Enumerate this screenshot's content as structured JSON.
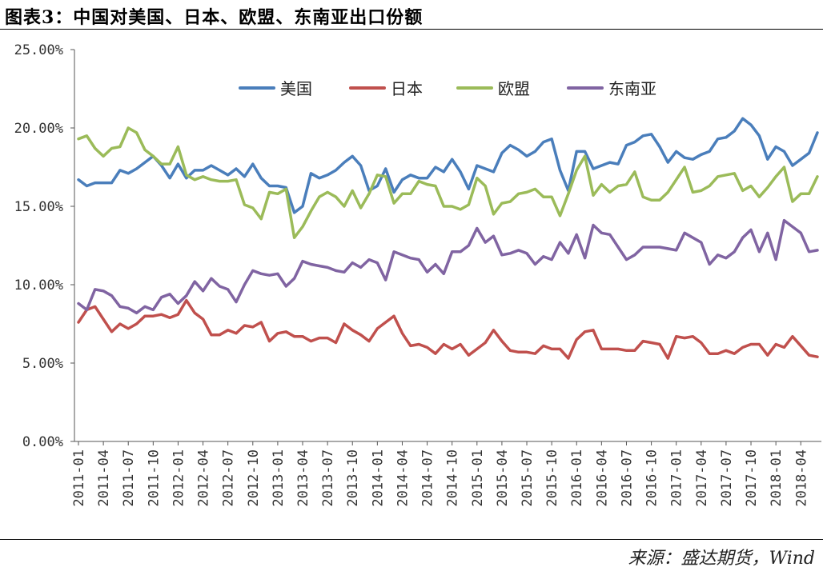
{
  "figure": {
    "title": "图表3：中国对美国、日本、欧盟、东南亚出口份额",
    "source": "来源：盛达期货，Wind"
  },
  "chart_data": {
    "type": "line",
    "ylim": [
      0,
      25
    ],
    "yticks": [
      "0.00%",
      "5.00%",
      "10.00%",
      "15.00%",
      "20.00%",
      "25.00%"
    ],
    "ytick_values": [
      0,
      5,
      10,
      15,
      20,
      25
    ],
    "xtick_labels": [
      "2011-01",
      "2011-04",
      "2011-07",
      "2011-10",
      "2012-01",
      "2012-04",
      "2012-07",
      "2012-10",
      "2013-01",
      "2013-04",
      "2013-07",
      "2013-10",
      "2014-01",
      "2014-04",
      "2014-07",
      "2014-10",
      "2015-01",
      "2015-04",
      "2015-07",
      "2015-10",
      "2016-01",
      "2016-04",
      "2016-07",
      "2016-10",
      "2017-01",
      "2017-04",
      "2017-07",
      "2017-10",
      "2018-01",
      "2018-04"
    ],
    "legend_position": "top",
    "grid": false,
    "series": [
      {
        "name": "美国",
        "color": "#4a7ebb",
        "values": [
          16.7,
          16.3,
          16.5,
          16.5,
          16.5,
          17.3,
          17.1,
          17.4,
          17.8,
          18.2,
          17.6,
          16.8,
          17.7,
          16.8,
          17.3,
          17.3,
          17.6,
          17.3,
          17.0,
          17.4,
          16.9,
          17.7,
          16.8,
          16.3,
          16.3,
          16.2,
          14.6,
          15.0,
          17.1,
          16.8,
          17.0,
          17.3,
          17.8,
          18.2,
          17.6,
          16.0,
          16.3,
          17.4,
          15.9,
          16.7,
          17.0,
          16.8,
          16.8,
          17.5,
          17.2,
          18.0,
          17.2,
          16.1,
          17.6,
          17.4,
          17.2,
          18.4,
          18.9,
          18.6,
          18.2,
          18.5,
          19.1,
          19.3,
          17.3,
          16.0,
          18.5,
          18.5,
          17.4,
          17.6,
          17.8,
          17.7,
          18.9,
          19.1,
          19.5,
          19.6,
          18.8,
          17.8,
          18.5,
          18.1,
          18.0,
          18.3,
          18.5,
          19.3,
          19.4,
          19.8,
          20.6,
          20.2,
          19.5,
          18.0,
          18.8,
          18.5,
          17.6,
          18.0,
          18.4,
          19.7
        ]
      },
      {
        "name": "日本",
        "color": "#c0504d",
        "values": [
          7.6,
          8.4,
          8.6,
          7.8,
          7.0,
          7.5,
          7.2,
          7.5,
          8.0,
          8.0,
          8.1,
          7.9,
          8.1,
          9.0,
          8.2,
          7.8,
          6.8,
          6.8,
          7.1,
          6.9,
          7.4,
          7.3,
          7.6,
          6.4,
          6.9,
          7.0,
          6.7,
          6.7,
          6.4,
          6.6,
          6.6,
          6.3,
          7.5,
          7.1,
          6.8,
          6.4,
          7.2,
          7.6,
          8.0,
          6.9,
          6.1,
          6.2,
          6.0,
          5.6,
          6.2,
          5.9,
          6.2,
          5.5,
          5.9,
          6.3,
          7.1,
          6.4,
          5.8,
          5.7,
          5.7,
          5.6,
          6.1,
          5.9,
          5.9,
          5.3,
          6.5,
          7.0,
          7.1,
          5.9,
          5.9,
          5.9,
          5.8,
          5.8,
          6.4,
          6.3,
          6.2,
          5.3,
          6.7,
          6.6,
          6.7,
          6.3,
          5.6,
          5.6,
          5.8,
          5.6,
          6.0,
          6.2,
          6.2,
          5.5,
          6.2,
          6.0,
          6.7,
          6.1,
          5.5,
          5.4
        ]
      },
      {
        "name": "欧盟",
        "color": "#9bbb59",
        "values": [
          19.3,
          19.5,
          18.7,
          18.2,
          18.7,
          18.8,
          20.0,
          19.7,
          18.6,
          18.2,
          17.7,
          17.7,
          18.8,
          17.0,
          16.7,
          16.9,
          16.7,
          16.6,
          16.6,
          16.7,
          15.1,
          14.9,
          14.2,
          15.9,
          15.8,
          16.1,
          13.0,
          13.7,
          14.7,
          15.6,
          15.9,
          15.6,
          15.0,
          16.0,
          14.9,
          15.8,
          17.0,
          16.9,
          15.2,
          15.8,
          15.8,
          16.6,
          16.4,
          16.3,
          15.0,
          15.0,
          14.8,
          15.1,
          16.8,
          16.3,
          14.5,
          15.2,
          15.3,
          15.8,
          15.9,
          16.1,
          15.6,
          15.6,
          14.4,
          15.8,
          17.3,
          18.2,
          15.7,
          16.4,
          15.9,
          16.3,
          16.4,
          17.2,
          15.6,
          15.4,
          15.4,
          15.9,
          16.7,
          17.5,
          15.9,
          16.0,
          16.3,
          16.9,
          17.0,
          17.1,
          16.0,
          16.3,
          15.6,
          16.2,
          16.9,
          17.5,
          15.3,
          15.8,
          15.8,
          16.9
        ]
      },
      {
        "name": "东南亚",
        "color": "#8064a2",
        "values": [
          8.8,
          8.4,
          9.7,
          9.6,
          9.3,
          8.6,
          8.5,
          8.2,
          8.6,
          8.4,
          9.2,
          9.4,
          8.8,
          9.3,
          10.2,
          9.6,
          10.4,
          9.9,
          9.7,
          8.9,
          10.0,
          10.9,
          10.7,
          10.6,
          10.7,
          9.9,
          10.4,
          11.5,
          11.3,
          11.2,
          11.1,
          10.9,
          10.8,
          11.4,
          11.1,
          11.6,
          11.4,
          10.3,
          12.1,
          11.9,
          11.7,
          11.6,
          10.8,
          11.3,
          10.7,
          12.1,
          12.1,
          12.5,
          13.6,
          12.7,
          13.1,
          11.9,
          12.0,
          12.2,
          12.0,
          11.3,
          11.8,
          11.6,
          12.7,
          12.0,
          13.2,
          11.7,
          13.8,
          13.3,
          13.2,
          12.4,
          11.6,
          11.9,
          12.4,
          12.4,
          12.4,
          12.3,
          12.2,
          13.3,
          13.0,
          12.7,
          11.3,
          11.9,
          11.7,
          12.1,
          13.0,
          13.5,
          12.1,
          13.3,
          11.6,
          14.1,
          13.7,
          13.3,
          12.1,
          12.2
        ]
      }
    ]
  }
}
